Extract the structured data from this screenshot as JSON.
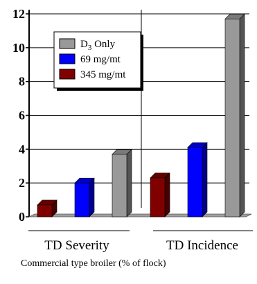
{
  "chart_data": {
    "type": "bar",
    "style": "3d",
    "categories": [
      "TD Severity",
      "TD Incidence"
    ],
    "series": [
      {
        "name": "D3 Only",
        "name_main": "D",
        "name_sub": "3",
        "name_rest": " Only",
        "color": "#999999",
        "values": [
          3.7,
          11.7
        ]
      },
      {
        "name": "69 mg/mt",
        "color": "#0000ff",
        "values": [
          2.0,
          4.1
        ]
      },
      {
        "name": "345 mg/mt",
        "color": "#800000",
        "values": [
          0.7,
          2.3
        ]
      }
    ],
    "bar_order": [
      "345 mg/mt",
      "69 mg/mt",
      "D3 Only"
    ],
    "ylim": [
      0,
      12
    ],
    "yticks": [
      "0",
      "2",
      "4",
      "6",
      "8",
      "10",
      "12"
    ],
    "grid": true,
    "legend_position": "top-left",
    "caption": "Commercial type broiler (% of flock)"
  }
}
